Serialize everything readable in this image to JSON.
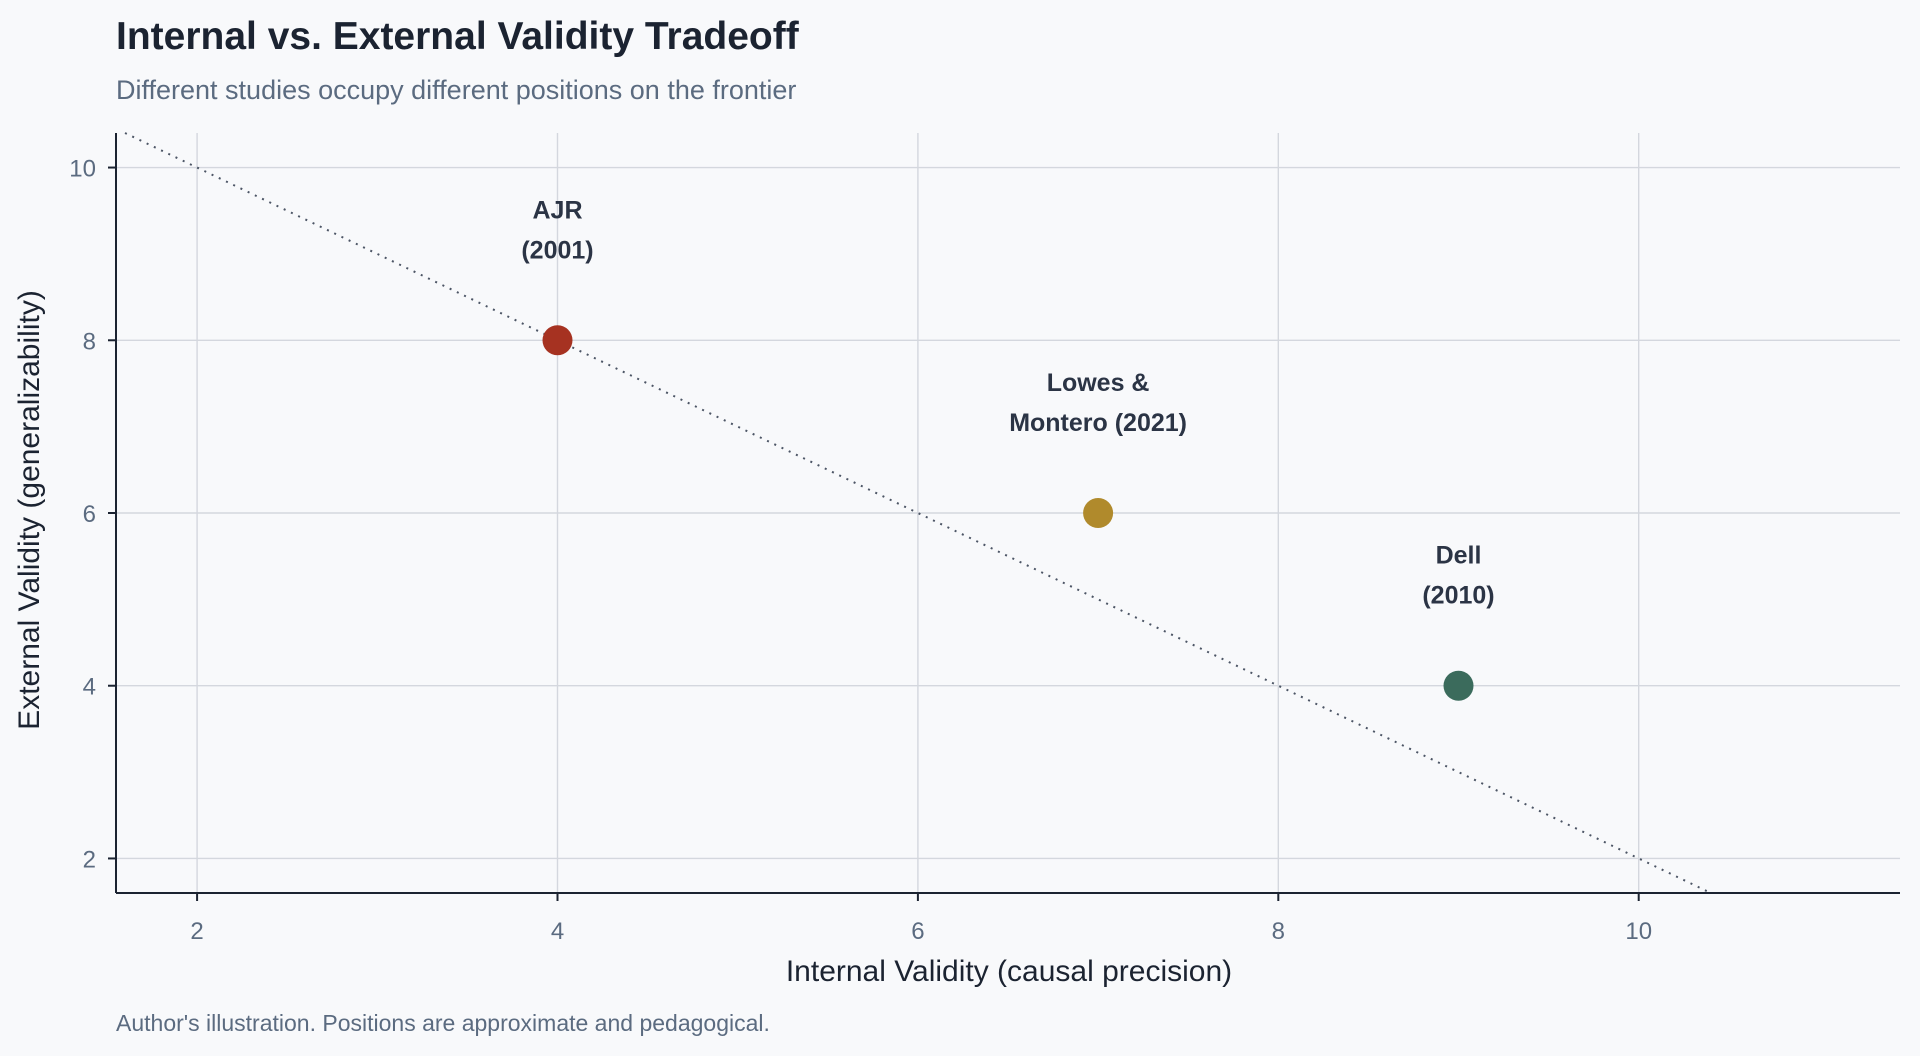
{
  "chart_data": {
    "type": "scatter",
    "title": "Internal vs. External Validity Tradeoff",
    "subtitle": "Different studies occupy different positions on the frontier",
    "xlabel": "Internal Validity (causal precision)",
    "ylabel": "External Validity (generalizability)",
    "caption": "Author's illustration. Positions are approximate and pedagogical.",
    "xlim": [
      1.55,
      11.45
    ],
    "ylim": [
      1.6,
      10.4
    ],
    "xticks": [
      2,
      4,
      6,
      8,
      10
    ],
    "yticks": [
      2,
      4,
      6,
      8,
      10
    ],
    "grid": true,
    "points": [
      {
        "label_lines": [
          "AJR",
          "(2001)"
        ],
        "x": 4,
        "y": 8,
        "color": "#a63221"
      },
      {
        "label_lines": [
          "Lowes &",
          "Montero (2021)"
        ],
        "x": 7,
        "y": 6,
        "color": "#b08a2c"
      },
      {
        "label_lines": [
          "Dell",
          "(2010)"
        ],
        "x": 9,
        "y": 4,
        "color": "#3b6b5c"
      }
    ],
    "frontier": {
      "style": "dotted",
      "slope": -1,
      "intercept": 12,
      "color": "#4c5565"
    }
  }
}
